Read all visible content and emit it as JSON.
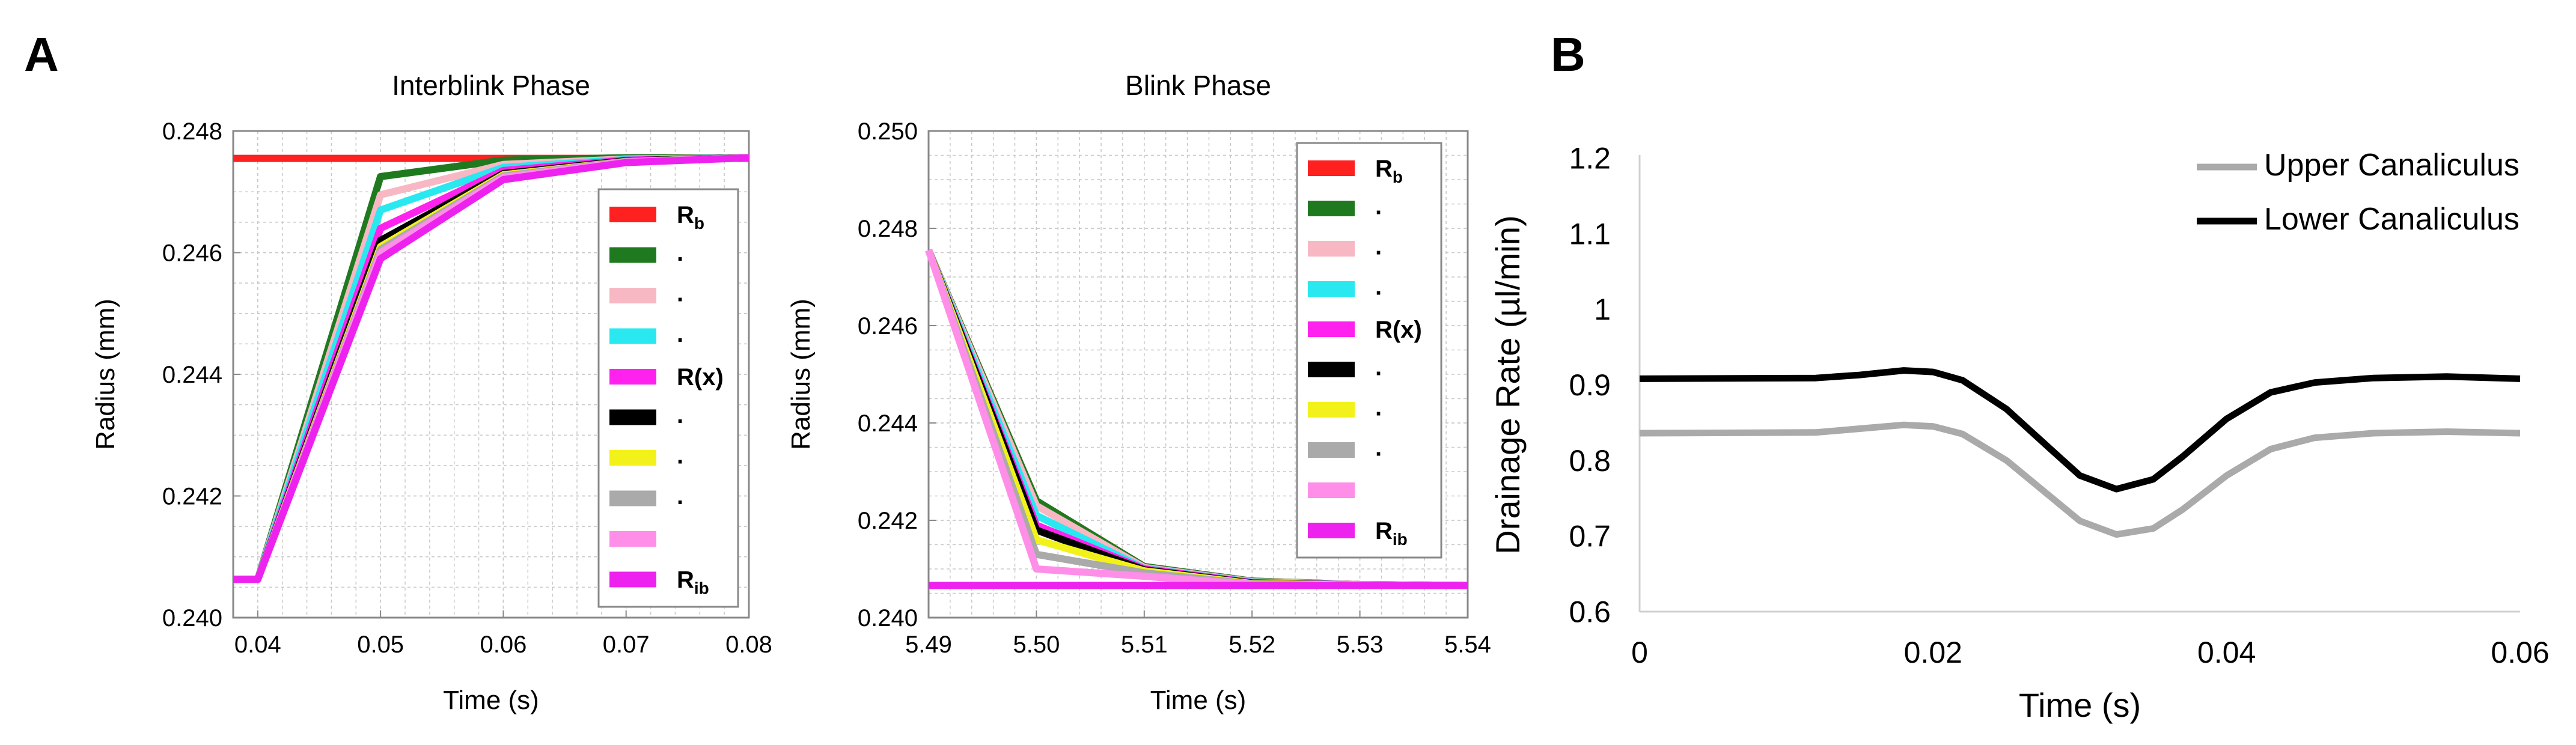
{
  "panels": {
    "a_label": "A",
    "b_label": "B"
  },
  "chart_data": [
    {
      "id": "interblink",
      "type": "line",
      "title": "Interblink Phase",
      "xlabel": "Time (s)",
      "ylabel": "Radius (mm)",
      "xlim": [
        0.038,
        0.08
      ],
      "ylim": [
        0.24,
        0.248
      ],
      "xticks": [
        0.04,
        0.05,
        0.06,
        0.07,
        0.08
      ],
      "xtick_labels": [
        "0.04",
        "0.05",
        "0.06",
        "0.07",
        "0.08"
      ],
      "yticks": [
        0.24,
        0.242,
        0.244,
        0.246,
        0.248
      ],
      "ytick_labels": [
        "0.240",
        "0.242",
        "0.244",
        "0.246",
        "0.248"
      ],
      "grid": true,
      "x": [
        0.038,
        0.04,
        0.05,
        0.06,
        0.07,
        0.08
      ],
      "series": [
        {
          "name": "Rb",
          "color": "#ff2020",
          "values": [
            0.24755,
            0.24755,
            0.24755,
            0.24755,
            0.24755,
            0.24755
          ]
        },
        {
          "name": "·",
          "color": "#1f7a1f",
          "values": [
            0.24063,
            0.24063,
            0.24725,
            0.24752,
            0.24756,
            0.24756
          ]
        },
        {
          "name": "·",
          "color": "#f7b8c4",
          "values": [
            0.24063,
            0.24063,
            0.24695,
            0.24745,
            0.24754,
            0.24756
          ]
        },
        {
          "name": "·",
          "color": "#29e8f0",
          "values": [
            0.24063,
            0.24063,
            0.2467,
            0.2474,
            0.24753,
            0.24756
          ]
        },
        {
          "name": "R(x)",
          "color": "#ff22ee",
          "values": [
            0.24063,
            0.24063,
            0.2464,
            0.24735,
            0.24752,
            0.24756
          ]
        },
        {
          "name": "·",
          "color": "#000000",
          "values": [
            0.24063,
            0.24063,
            0.2462,
            0.2473,
            0.24751,
            0.24756
          ]
        },
        {
          "name": "·",
          "color": "#f2f21a",
          "values": [
            0.24063,
            0.24063,
            0.2461,
            0.24728,
            0.2475,
            0.24756
          ]
        },
        {
          "name": "·",
          "color": "#aaaaaa",
          "values": [
            0.24063,
            0.24063,
            0.24605,
            0.24726,
            0.2475,
            0.24756
          ]
        },
        {
          "name": "",
          "color": "#ff8ee8",
          "values": [
            0.24063,
            0.24063,
            0.246,
            0.24724,
            0.24749,
            0.24756
          ]
        },
        {
          "name": "Rib",
          "color": "#ee22ee",
          "values": [
            0.24063,
            0.24063,
            0.2459,
            0.2472,
            0.24748,
            0.24756
          ]
        }
      ],
      "legend": [
        {
          "main": "R",
          "sub": "b",
          "color": "#ff2020"
        },
        {
          "main": "·",
          "sub": "",
          "color": "#1f7a1f"
        },
        {
          "main": "·",
          "sub": "",
          "color": "#f7b8c4"
        },
        {
          "main": "·",
          "sub": "",
          "color": "#29e8f0"
        },
        {
          "main": "R(x)",
          "sub": "",
          "color": "#ff22ee"
        },
        {
          "main": "·",
          "sub": "",
          "color": "#000000"
        },
        {
          "main": "·",
          "sub": "",
          "color": "#f2f21a"
        },
        {
          "main": "·",
          "sub": "",
          "color": "#aaaaaa"
        },
        {
          "main": "",
          "sub": "",
          "color": "#ff8ee8"
        },
        {
          "main": "R",
          "sub": "ib",
          "color": "#ee22ee"
        }
      ],
      "legend_position": "right"
    },
    {
      "id": "blink",
      "type": "line",
      "title": "Blink Phase",
      "xlabel": "Time (s)",
      "ylabel": "Radius (mm)",
      "xlim": [
        5.49,
        5.54
      ],
      "ylim": [
        0.24,
        0.25
      ],
      "xticks": [
        5.49,
        5.5,
        5.51,
        5.52,
        5.53,
        5.54
      ],
      "xtick_labels": [
        "5.49",
        "5.50",
        "5.51",
        "5.52",
        "5.53",
        "5.54"
      ],
      "yticks": [
        0.24,
        0.242,
        0.244,
        0.246,
        0.248,
        0.25
      ],
      "ytick_labels": [
        "0.240",
        "0.242",
        "0.244",
        "0.246",
        "0.248",
        "0.250"
      ],
      "grid": true,
      "x": [
        5.49,
        5.5,
        5.51,
        5.52,
        5.53,
        5.54
      ],
      "series": [
        {
          "name": "Rb",
          "color": "#ff2020",
          "values": [
            0.24755,
            0.2424,
            0.24105,
            0.24075,
            0.24068,
            0.24066
          ]
        },
        {
          "name": "·",
          "color": "#1f7a1f",
          "values": [
            0.24755,
            0.2424,
            0.24105,
            0.24075,
            0.24068,
            0.24066
          ]
        },
        {
          "name": "·",
          "color": "#f7b8c4",
          "values": [
            0.24755,
            0.2423,
            0.24103,
            0.24074,
            0.24068,
            0.24066
          ]
        },
        {
          "name": "·",
          "color": "#29e8f0",
          "values": [
            0.24755,
            0.2421,
            0.24101,
            0.24073,
            0.24067,
            0.24066
          ]
        },
        {
          "name": "R(x)",
          "color": "#ff22ee",
          "values": [
            0.24755,
            0.2419,
            0.241,
            0.24072,
            0.24067,
            0.24066
          ]
        },
        {
          "name": "·",
          "color": "#000000",
          "values": [
            0.24755,
            0.2418,
            0.24098,
            0.24071,
            0.24067,
            0.24066
          ]
        },
        {
          "name": "·",
          "color": "#f2f21a",
          "values": [
            0.24755,
            0.2416,
            0.24096,
            0.2407,
            0.24067,
            0.24066
          ]
        },
        {
          "name": "·",
          "color": "#aaaaaa",
          "values": [
            0.24755,
            0.2413,
            0.24092,
            0.24069,
            0.24066,
            0.24066
          ]
        },
        {
          "name": "",
          "color": "#ff8ee8",
          "values": [
            0.24755,
            0.241,
            0.24085,
            0.24068,
            0.24066,
            0.24066
          ]
        },
        {
          "name": "Rib",
          "color": "#ee22ee",
          "values": [
            0.24066,
            0.24066,
            0.24066,
            0.24066,
            0.24066,
            0.24066
          ]
        }
      ],
      "legend": [
        {
          "main": "R",
          "sub": "b",
          "color": "#ff2020"
        },
        {
          "main": "·",
          "sub": "",
          "color": "#1f7a1f"
        },
        {
          "main": "·",
          "sub": "",
          "color": "#f7b8c4"
        },
        {
          "main": "·",
          "sub": "",
          "color": "#29e8f0"
        },
        {
          "main": "R(x)",
          "sub": "",
          "color": "#ff22ee"
        },
        {
          "main": "·",
          "sub": "",
          "color": "#000000"
        },
        {
          "main": "·",
          "sub": "",
          "color": "#f2f21a"
        },
        {
          "main": "·",
          "sub": "",
          "color": "#aaaaaa"
        },
        {
          "main": "",
          "sub": "",
          "color": "#ff8ee8"
        },
        {
          "main": "R",
          "sub": "ib",
          "color": "#ee22ee"
        }
      ],
      "legend_position": "right"
    },
    {
      "id": "drainage",
      "type": "line",
      "title": "",
      "xlabel": "Time (s)",
      "ylabel": "Drainage Rate (µl/min)",
      "xlim": [
        0,
        0.06
      ],
      "ylim": [
        0.6,
        1.2
      ],
      "xticks": [
        0,
        0.02,
        0.04,
        0.06
      ],
      "xtick_labels": [
        "0",
        "0.02",
        "0.04",
        "0.06"
      ],
      "yticks": [
        0.6,
        0.7,
        0.8,
        0.9,
        1.0,
        1.1,
        1.2
      ],
      "ytick_labels": [
        "0.6",
        "0.7",
        "0.8",
        "0.9",
        "1",
        "1.1",
        "1.2"
      ],
      "grid": false,
      "x": [
        0,
        0.012,
        0.015,
        0.018,
        0.02,
        0.022,
        0.025,
        0.028,
        0.03,
        0.0325,
        0.035,
        0.037,
        0.04,
        0.043,
        0.046,
        0.05,
        0.055,
        0.06
      ],
      "series": [
        {
          "name": "Upper Canaliculus",
          "color": "#aaaaaa",
          "values": [
            0.836,
            0.837,
            0.842,
            0.847,
            0.845,
            0.835,
            0.8,
            0.752,
            0.72,
            0.702,
            0.71,
            0.735,
            0.78,
            0.815,
            0.83,
            0.836,
            0.838,
            0.836
          ]
        },
        {
          "name": "Lower Canaliculus",
          "color": "#000000",
          "values": [
            0.908,
            0.909,
            0.913,
            0.919,
            0.917,
            0.906,
            0.868,
            0.815,
            0.78,
            0.762,
            0.775,
            0.805,
            0.855,
            0.89,
            0.903,
            0.909,
            0.911,
            0.908
          ]
        }
      ],
      "legend": [
        {
          "main": "Upper Canaliculus",
          "sub": "",
          "color": "#aaaaaa"
        },
        {
          "main": "Lower Canaliculus",
          "sub": "",
          "color": "#000000"
        }
      ],
      "legend_position": "top-right"
    }
  ]
}
